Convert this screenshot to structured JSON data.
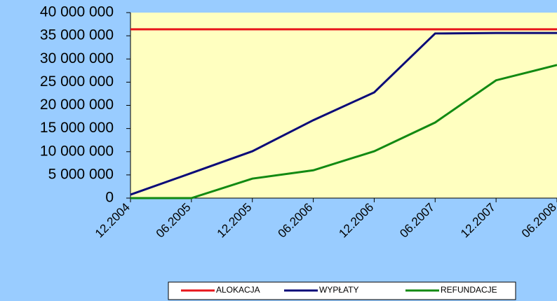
{
  "chart_data": {
    "type": "line",
    "categories": [
      "12.2004",
      "06.2005",
      "12.2005",
      "06.2006",
      "12.2006",
      "06.2007",
      "12.2007",
      "06.2008"
    ],
    "series": [
      {
        "name": "ALOKACJA",
        "color": "#e8151b",
        "values": [
          36400000,
          36400000,
          36400000,
          36400000,
          36400000,
          36400000,
          36400000,
          36400000
        ]
      },
      {
        "name": "WYPŁATY",
        "color": "#0a0a78",
        "values": [
          750000,
          5400000,
          10100000,
          16800000,
          22800000,
          35500000,
          35600000,
          35600000
        ]
      },
      {
        "name": "REFUNDACJE",
        "color": "#128a12",
        "values": [
          0,
          0,
          4200000,
          6000000,
          10100000,
          16300000,
          25400000,
          28700000
        ]
      }
    ],
    "ylim": [
      0,
      40000000
    ],
    "yticks": [
      0,
      {
        "value": 5000000,
        "label": "5 000 000"
      },
      {
        "value": 10000000,
        "label": "10 000 000"
      },
      {
        "value": 15000000,
        "label": "15 000 000"
      },
      {
        "value": 20000000,
        "label": "20 000 000"
      },
      {
        "value": 25000000,
        "label": "25 000 000"
      },
      {
        "value": 30000000,
        "label": "30 000 000"
      },
      {
        "value": 35000000,
        "label": "35 000 000"
      },
      {
        "value": 40000000,
        "label": "40 000 000"
      }
    ],
    "grid": false,
    "legend": "bottom"
  }
}
